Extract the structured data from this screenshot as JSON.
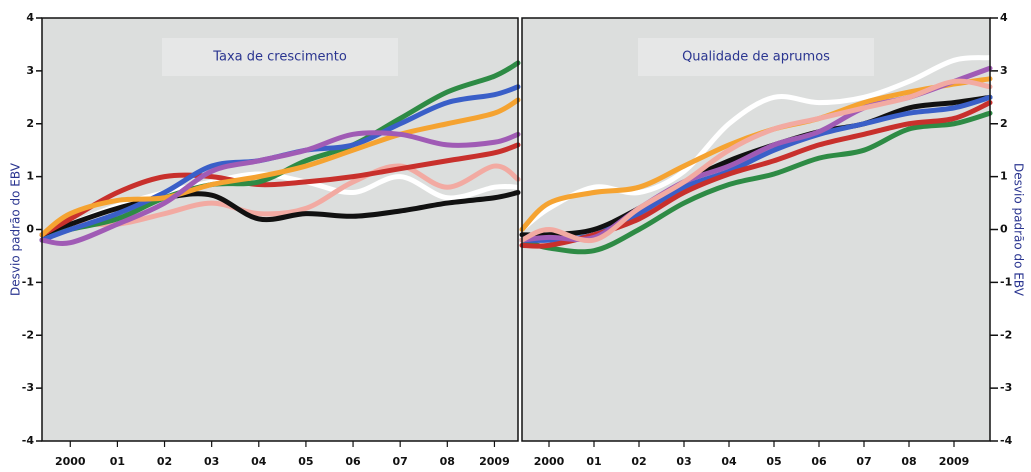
{
  "chart_data": [
    {
      "type": "line",
      "title": "Taxa de crescimento",
      "y_label": "Desvio padrão do EBV",
      "y_axis_side": "left",
      "x": [
        1999.4,
        2000,
        2001,
        2002,
        2003,
        2004,
        2005,
        2006,
        2007,
        2008,
        2009,
        2009.5
      ],
      "xlim": [
        1999.4,
        2009.5
      ],
      "xticks": [
        {
          "value": 2000,
          "label": "2000"
        },
        {
          "value": 2001,
          "label": "01"
        },
        {
          "value": 2002,
          "label": "02"
        },
        {
          "value": 2003,
          "label": "03"
        },
        {
          "value": 2004,
          "label": "04"
        },
        {
          "value": 2005,
          "label": "05"
        },
        {
          "value": 2006,
          "label": "06"
        },
        {
          "value": 2007,
          "label": "07"
        },
        {
          "value": 2008,
          "label": "08"
        },
        {
          "value": 2009,
          "label": "2009"
        }
      ],
      "ylim": [
        -4,
        4
      ],
      "yticks": [
        4,
        3,
        2,
        1,
        0,
        -1,
        -2,
        -3,
        -4
      ],
      "series": [
        {
          "color": "#ffffff",
          "values": [
            -0.1,
            0.1,
            0.45,
            0.7,
            0.9,
            1.05,
            0.9,
            0.7,
            1.0,
            0.6,
            0.8,
            0.8
          ]
        },
        {
          "color": "#f2aaa2",
          "values": [
            -0.1,
            0.1,
            0.1,
            0.3,
            0.5,
            0.3,
            0.4,
            0.9,
            1.2,
            0.8,
            1.2,
            0.95
          ]
        },
        {
          "color": "#111111",
          "values": [
            -0.1,
            0.1,
            0.4,
            0.6,
            0.65,
            0.2,
            0.3,
            0.25,
            0.35,
            0.5,
            0.6,
            0.7
          ]
        },
        {
          "color": "#c8302c",
          "values": [
            -0.1,
            0.2,
            0.7,
            1.0,
            1.0,
            0.85,
            0.9,
            1.0,
            1.15,
            1.3,
            1.45,
            1.6
          ]
        },
        {
          "color": "#2e8b45",
          "values": [
            -0.2,
            0.0,
            0.2,
            0.6,
            0.85,
            0.9,
            1.3,
            1.6,
            2.1,
            2.6,
            2.9,
            3.15
          ]
        },
        {
          "color": "#3a5fc8",
          "values": [
            -0.2,
            0.0,
            0.3,
            0.7,
            1.2,
            1.3,
            1.5,
            1.6,
            2.0,
            2.4,
            2.55,
            2.7
          ]
        },
        {
          "color": "#f5a331",
          "values": [
            -0.1,
            0.3,
            0.55,
            0.6,
            0.85,
            1.0,
            1.2,
            1.5,
            1.8,
            2.0,
            2.2,
            2.45
          ]
        },
        {
          "color": "#a05bb5",
          "values": [
            -0.2,
            -0.25,
            0.1,
            0.5,
            1.1,
            1.3,
            1.5,
            1.8,
            1.8,
            1.6,
            1.65,
            1.8
          ]
        }
      ]
    },
    {
      "type": "line",
      "title": "Qualidade de aprumos",
      "y_label": "Desvio padrão do EBV",
      "y_axis_side": "right",
      "x": [
        1999.4,
        2000,
        2001,
        2002,
        2003,
        2004,
        2005,
        2006,
        2007,
        2008,
        2009,
        2009.8
      ],
      "xlim": [
        1999.4,
        2009.8
      ],
      "xticks": [
        {
          "value": 2000,
          "label": "2000"
        },
        {
          "value": 2001,
          "label": "01"
        },
        {
          "value": 2002,
          "label": "02"
        },
        {
          "value": 2003,
          "label": "03"
        },
        {
          "value": 2004,
          "label": "04"
        },
        {
          "value": 2005,
          "label": "05"
        },
        {
          "value": 2006,
          "label": "06"
        },
        {
          "value": 2007,
          "label": "07"
        },
        {
          "value": 2008,
          "label": "08"
        },
        {
          "value": 2009,
          "label": "2009"
        }
      ],
      "ylim": [
        -4,
        4
      ],
      "yticks": [
        4,
        3,
        2,
        1,
        0,
        -1,
        -2,
        -3,
        -4
      ],
      "series": [
        {
          "color": "#ffffff",
          "values": [
            0.0,
            0.4,
            0.8,
            0.7,
            1.1,
            2.0,
            2.5,
            2.4,
            2.5,
            2.8,
            3.2,
            3.25
          ]
        },
        {
          "color": "#111111",
          "values": [
            -0.1,
            -0.1,
            0.0,
            0.4,
            0.9,
            1.3,
            1.6,
            1.85,
            2.0,
            2.3,
            2.4,
            2.5
          ]
        },
        {
          "color": "#2e8b45",
          "values": [
            -0.2,
            -0.35,
            -0.4,
            0.0,
            0.5,
            0.85,
            1.05,
            1.35,
            1.5,
            1.9,
            2.0,
            2.2
          ]
        },
        {
          "color": "#3a5fc8",
          "values": [
            -0.2,
            -0.2,
            -0.1,
            0.3,
            0.8,
            1.1,
            1.5,
            1.8,
            2.0,
            2.2,
            2.3,
            2.5
          ]
        },
        {
          "color": "#c8302c",
          "values": [
            -0.3,
            -0.3,
            -0.1,
            0.2,
            0.7,
            1.05,
            1.3,
            1.6,
            1.8,
            2.0,
            2.1,
            2.4
          ]
        },
        {
          "color": "#f5a331",
          "values": [
            0.0,
            0.5,
            0.7,
            0.8,
            1.2,
            1.6,
            1.9,
            2.1,
            2.4,
            2.6,
            2.75,
            2.85
          ]
        },
        {
          "color": "#a05bb5",
          "values": [
            -0.2,
            -0.15,
            -0.15,
            0.4,
            0.9,
            1.2,
            1.6,
            1.85,
            2.3,
            2.5,
            2.8,
            3.05
          ]
        },
        {
          "color": "#f2aaa2",
          "values": [
            -0.2,
            0.0,
            -0.2,
            0.4,
            0.9,
            1.5,
            1.9,
            2.1,
            2.3,
            2.5,
            2.8,
            2.7
          ]
        }
      ]
    }
  ]
}
